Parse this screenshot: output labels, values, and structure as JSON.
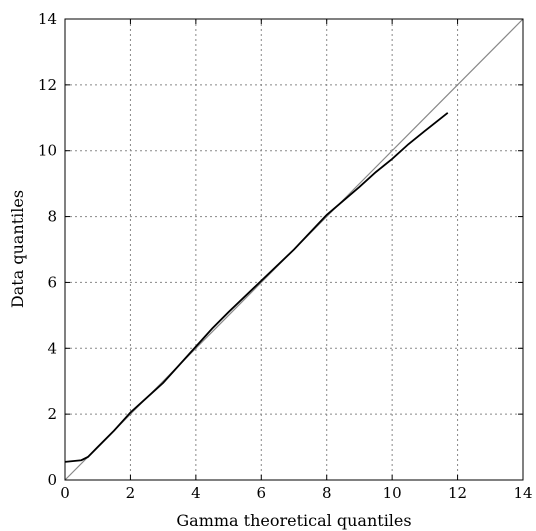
{
  "chart_data": {
    "type": "line",
    "xlabel": "Gamma theoretical quantiles",
    "ylabel": "Data quantiles",
    "xlim": [
      0,
      14
    ],
    "ylim": [
      0,
      14
    ],
    "xticks": [
      0,
      2,
      4,
      6,
      8,
      10,
      12,
      14
    ],
    "yticks": [
      0,
      2,
      4,
      6,
      8,
      10,
      12,
      14
    ],
    "grid": true,
    "series": [
      {
        "type": "line",
        "role": "reference",
        "x": [
          0,
          14
        ],
        "y": [
          0,
          14
        ]
      },
      {
        "type": "line",
        "role": "qq",
        "x": [
          0.0,
          0.5,
          0.7,
          1.0,
          1.5,
          2.0,
          2.5,
          3.0,
          3.5,
          4.0,
          4.5,
          5.0,
          6.0,
          7.0,
          8.0,
          9.0,
          9.5,
          10.0,
          10.5,
          11.0,
          11.7
        ],
        "y": [
          0.55,
          0.6,
          0.7,
          1.0,
          1.5,
          2.05,
          2.5,
          2.95,
          3.5,
          4.05,
          4.6,
          5.1,
          6.05,
          7.0,
          8.05,
          8.9,
          9.35,
          9.75,
          10.2,
          10.6,
          11.15
        ]
      }
    ],
    "colors": {
      "qq": "#000000",
      "reference": "#888888",
      "grid": "#888888"
    }
  }
}
